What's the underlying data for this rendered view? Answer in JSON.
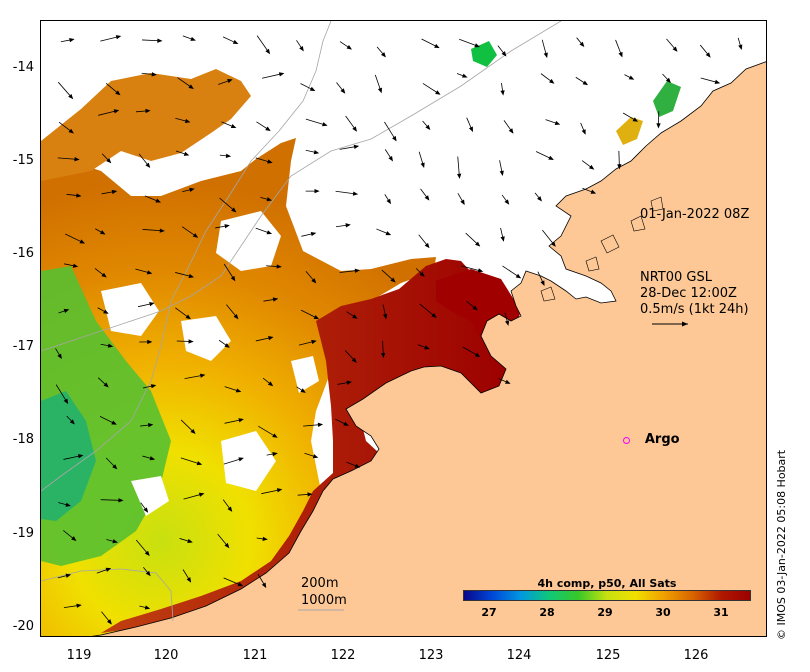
{
  "map": {
    "y_ticks": [
      "-14",
      "-15",
      "-16",
      "-17",
      "-18",
      "-19",
      "-20"
    ],
    "x_ticks": [
      "119",
      "120",
      "121",
      "122",
      "123",
      "124",
      "125",
      "126"
    ],
    "lat_range": [
      -20.1,
      -13.5
    ],
    "lon_range": [
      118.6,
      126.9
    ],
    "colors": {
      "land": "#fdc896",
      "coast": "#000000",
      "isobath": "#a6a6a6",
      "argo": "#ff00ff"
    }
  },
  "annotations": {
    "timestamp": "01-Jan-2022 08Z",
    "current_title": "NRT00 GSL",
    "current_date": "28-Dec 12:00Z",
    "current_scale": "0.5m/s (1kt 24h)",
    "depth_200": "200m",
    "depth_1000": "1000m"
  },
  "argo": {
    "label": "Argo",
    "lat": -18.0,
    "lon": 125.3
  },
  "colorbar": {
    "title": "4h comp, p50, All Sats",
    "ticks": [
      "27",
      "28",
      "29",
      "30",
      "31"
    ],
    "range": [
      26.6,
      31.6
    ],
    "colors": [
      "#08088a",
      "#0048d8",
      "#0098e0",
      "#10c878",
      "#38c828",
      "#c8e010",
      "#f0e000",
      "#f0a000",
      "#d86400",
      "#b01800",
      "#9c0000"
    ]
  },
  "credit": "© IMOS 03-Jan-2022 05:08 Hobart"
}
